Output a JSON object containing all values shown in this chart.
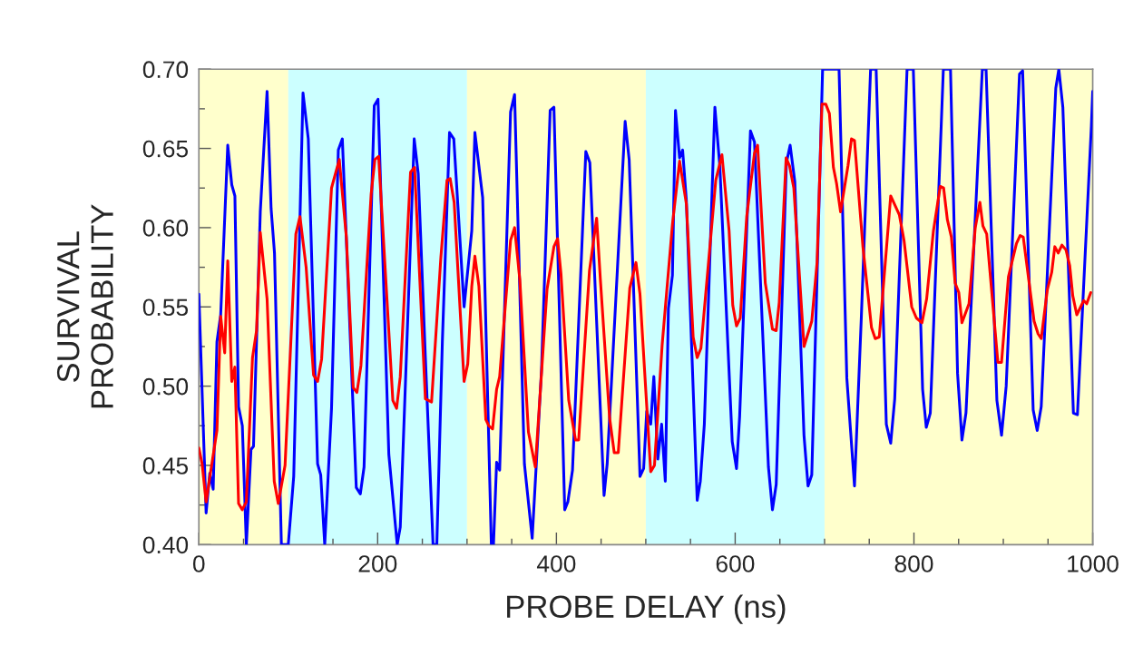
{
  "chart_data": {
    "type": "line",
    "xlabel": "PROBE DELAY (ns)",
    "ylabel": "SURVIVAL\nPROBABILITY",
    "xlim": [
      0,
      1000
    ],
    "ylim": [
      0.4,
      0.7
    ],
    "xticks": [
      0,
      {
        "value": 50,
        "label": null
      },
      {
        "value": 100,
        "label": null
      },
      {
        "value": 150,
        "label": null
      },
      200,
      {
        "value": 250,
        "label": null
      },
      {
        "value": 300,
        "label": null
      },
      {
        "value": 350,
        "label": null
      },
      400,
      {
        "value": 450,
        "label": null
      },
      {
        "value": 500,
        "label": null
      },
      {
        "value": 550,
        "label": null
      },
      600,
      {
        "value": 650,
        "label": null
      },
      {
        "value": 700,
        "label": null
      },
      {
        "value": 750,
        "label": null
      },
      800,
      {
        "value": 850,
        "label": null
      },
      {
        "value": 900,
        "label": null
      },
      {
        "value": 950,
        "label": null
      },
      1000
    ],
    "yticks": [
      {
        "value": 0.4,
        "label": "0.40"
      },
      {
        "value": 0.425,
        "label": null
      },
      {
        "value": 0.45,
        "label": "0.45"
      },
      {
        "value": 0.475,
        "label": null
      },
      {
        "value": 0.5,
        "label": "0.50"
      },
      {
        "value": 0.525,
        "label": null
      },
      {
        "value": 0.55,
        "label": "0.55"
      },
      {
        "value": 0.575,
        "label": null
      },
      {
        "value": 0.6,
        "label": "0.60"
      },
      {
        "value": 0.625,
        "label": null
      },
      {
        "value": 0.65,
        "label": "0.65"
      },
      {
        "value": 0.675,
        "label": null
      },
      {
        "value": 0.7,
        "label": "0.70"
      }
    ],
    "grid": false,
    "legend": false,
    "marker": "none",
    "line_style": "solid",
    "bands": [
      {
        "axis": "x",
        "from": 0,
        "to": 100,
        "color": "#ffffcc"
      },
      {
        "axis": "x",
        "from": 100,
        "to": 300,
        "color": "#ccffff"
      },
      {
        "axis": "x",
        "from": 300,
        "to": 500,
        "color": "#ffffcc"
      },
      {
        "axis": "x",
        "from": 500,
        "to": 700,
        "color": "#ccffff"
      },
      {
        "axis": "x",
        "from": 700,
        "to": 1000,
        "color": "#ffffcc"
      }
    ],
    "series": [
      {
        "color": "#0000ff",
        "x": [
          0,
          8.1,
          12.2,
          16.0,
          20.2,
          24.4,
          32.3,
          36.8,
          40.3,
          44.4,
          48.6,
          53.1,
          58.3,
          61.1,
          68.7,
          76.3,
          80.8,
          84.6,
          92.3,
          100,
          106.1,
          116.5,
          122.4,
          132.8,
          136.3,
          140.8,
          148.4,
          156.0,
          160.5,
          176.1,
          180.6,
          184.8,
          196.2,
          200.4,
          212.5,
          221.9,
          225.3,
          240.9,
          245.4,
          253.4,
          262.0,
          266.2,
          272.4,
          280.4,
          285.2,
          296.7,
          305.3,
          308.8,
          317.5,
          327.2,
          329.6,
          333.1,
          336.5,
          348.7,
          353.2,
          364.2,
          372.9,
          383.3,
          393.0,
          397.2,
          409.3,
          412.8,
          418.0,
          432.9,
          437.4,
          453.3,
          456.8,
          476.9,
          481.4,
          493.5,
          497.6,
          501.0,
          505.5,
          509.0,
          513.5,
          517.7,
          521.8,
          525.3,
          529.8,
          533.2,
          537.8,
          541.2,
          545.4,
          557.5,
          561.0,
          565.5,
          577.3,
          582.8,
          596.7,
          601.5,
          605.0,
          617.1,
          621.6,
          637.2,
          641.7,
          645.9,
          657.3,
          661.5,
          666.7,
          677.0,
          681.5,
          685.7,
          697.8,
          716.2,
          724.9,
          733.5,
          741.1,
          751.5,
          757.7,
          769.1,
          774.0,
          778.5,
          792.3,
          799.3,
          809.7,
          813.8,
          818.3,
          832.9,
          840.9,
          848.8,
          853.7,
          858.2,
          876.5,
          880.7,
          892.8,
          898.0,
          903.2,
          918.1,
          921.6,
          933.4,
          937.9,
          942.4,
          958.7,
          962.1,
          966.6,
          978.4,
          982.9,
          998.5,
          1000
        ],
        "values": [
          0.558,
          0.42,
          0.445,
          0.435,
          0.528,
          0.545,
          0.652,
          0.627,
          0.62,
          0.487,
          0.475,
          0.4,
          0.46,
          0.462,
          0.61,
          0.686,
          0.612,
          0.584,
          0.4,
          0.4,
          0.443,
          0.685,
          0.656,
          0.451,
          0.444,
          0.4,
          0.486,
          0.649,
          0.656,
          0.436,
          0.432,
          0.449,
          0.677,
          0.681,
          0.457,
          0.4,
          0.411,
          0.656,
          0.634,
          0.518,
          0.4,
          0.4,
          0.528,
          0.66,
          0.656,
          0.55,
          0.598,
          0.66,
          0.619,
          0.4,
          0.4,
          0.452,
          0.447,
          0.673,
          0.684,
          0.451,
          0.404,
          0.51,
          0.674,
          0.676,
          0.422,
          0.427,
          0.447,
          0.648,
          0.641,
          0.431,
          0.451,
          0.667,
          0.643,
          0.443,
          0.448,
          0.484,
          0.476,
          0.506,
          0.454,
          0.476,
          0.44,
          0.549,
          0.57,
          0.674,
          0.644,
          0.649,
          0.617,
          0.428,
          0.44,
          0.476,
          0.676,
          0.639,
          0.465,
          0.448,
          0.481,
          0.661,
          0.654,
          0.449,
          0.422,
          0.438,
          0.641,
          0.652,
          0.629,
          0.469,
          0.437,
          0.444,
          0.7,
          0.7,
          0.505,
          0.437,
          0.543,
          0.7,
          0.7,
          0.476,
          0.464,
          0.492,
          0.7,
          0.7,
          0.498,
          0.474,
          0.483,
          0.7,
          0.7,
          0.508,
          0.466,
          0.483,
          0.7,
          0.7,
          0.491,
          0.469,
          0.5,
          0.697,
          0.699,
          0.485,
          0.472,
          0.487,
          0.688,
          0.7,
          0.676,
          0.483,
          0.482,
          0.664,
          0.686
        ]
      },
      {
        "color": "#ff0000",
        "x": [
          0,
          3.6,
          8.1,
          12.6,
          16.7,
          20.2,
          24.4,
          28.9,
          32.3,
          36.8,
          40.3,
          44.4,
          48.6,
          53.1,
          60.0,
          64.5,
          68.7,
          76.3,
          84.3,
          88.8,
          96.4,
          108.5,
          113.1,
          120.0,
          128.3,
          132.8,
          137.3,
          148.4,
          157.1,
          165.0,
          172.7,
          176.8,
          181.3,
          192.7,
          196.9,
          201.1,
          217.0,
          221.2,
          225.3,
          236.8,
          241.3,
          253.4,
          260.3,
          270.7,
          277.6,
          281.1,
          285.6,
          296.7,
          300.8,
          305.3,
          308.8,
          313.3,
          321.0,
          324.4,
          328.6,
          333.1,
          336.5,
          348.7,
          353.2,
          359.1,
          368.7,
          376.4,
          389.5,
          397.2,
          401.3,
          405.1,
          413.8,
          421.4,
          424.9,
          437.0,
          445.0,
          449.1,
          459.5,
          464.7,
          469.2,
          482.1,
          489.0,
          493.5,
          505.5,
          509.7,
          518.3,
          529.8,
          537.8,
          545.4,
          553.0,
          557.5,
          561.7,
          578.3,
          585.2,
          593.2,
          597.3,
          601.5,
          605.7,
          612.9,
          621.6,
          625.1,
          633.7,
          641.7,
          645.9,
          649.3,
          657.0,
          660.8,
          665.6,
          677.0,
          685.7,
          691.6,
          697.1,
          701.3,
          705.4,
          709.9,
          713.4,
          717.9,
          726.2,
          730.1,
          733.5,
          742.9,
          752.5,
          756.7,
          761.2,
          774.0,
          783.7,
          788.9,
          797.5,
          802.7,
          809.0,
          814.2,
          821.8,
          829.4,
          833.2,
          837.4,
          841.9,
          846.1,
          850.2,
          853.7,
          861.6,
          868.6,
          873.8,
          877.2,
          881.4,
          893.9,
          898.0,
          905.7,
          914.7,
          918.8,
          922.3,
          934.4,
          938.9,
          942.4,
          949.3,
          954.2,
          957.6,
          961.4,
          965.6,
          970.1,
          974.3,
          977.7,
          982.2,
          989.9,
          993.3,
          997.8
        ],
        "values": [
          0.461,
          0.451,
          0.427,
          0.444,
          0.459,
          0.472,
          0.544,
          0.521,
          0.579,
          0.503,
          0.512,
          0.426,
          0.422,
          0.427,
          0.518,
          0.535,
          0.597,
          0.555,
          0.44,
          0.426,
          0.45,
          0.596,
          0.607,
          0.575,
          0.507,
          0.503,
          0.517,
          0.625,
          0.643,
          0.594,
          0.499,
          0.496,
          0.513,
          0.621,
          0.643,
          0.645,
          0.491,
          0.486,
          0.506,
          0.635,
          0.638,
          0.492,
          0.49,
          0.581,
          0.63,
          0.631,
          0.616,
          0.503,
          0.514,
          0.563,
          0.582,
          0.563,
          0.479,
          0.475,
          0.473,
          0.498,
          0.506,
          0.592,
          0.6,
          0.567,
          0.471,
          0.449,
          0.561,
          0.588,
          0.593,
          0.571,
          0.491,
          0.466,
          0.466,
          0.573,
          0.606,
          0.568,
          0.48,
          0.458,
          0.458,
          0.562,
          0.578,
          0.558,
          0.446,
          0.45,
          0.526,
          0.602,
          0.642,
          0.615,
          0.531,
          0.518,
          0.524,
          0.63,
          0.646,
          0.598,
          0.551,
          0.538,
          0.543,
          0.607,
          0.647,
          0.652,
          0.565,
          0.536,
          0.535,
          0.553,
          0.644,
          0.639,
          0.625,
          0.525,
          0.541,
          0.578,
          0.678,
          0.678,
          0.672,
          0.638,
          0.628,
          0.61,
          0.639,
          0.656,
          0.655,
          0.588,
          0.537,
          0.53,
          0.531,
          0.62,
          0.608,
          0.592,
          0.55,
          0.543,
          0.54,
          0.555,
          0.598,
          0.626,
          0.625,
          0.605,
          0.594,
          0.565,
          0.559,
          0.54,
          0.552,
          0.6,
          0.616,
          0.601,
          0.596,
          0.515,
          0.515,
          0.569,
          0.59,
          0.595,
          0.594,
          0.541,
          0.533,
          0.53,
          0.561,
          0.572,
          0.588,
          0.584,
          0.589,
          0.586,
          0.576,
          0.557,
          0.545,
          0.554,
          0.552,
          0.559
        ]
      }
    ]
  }
}
